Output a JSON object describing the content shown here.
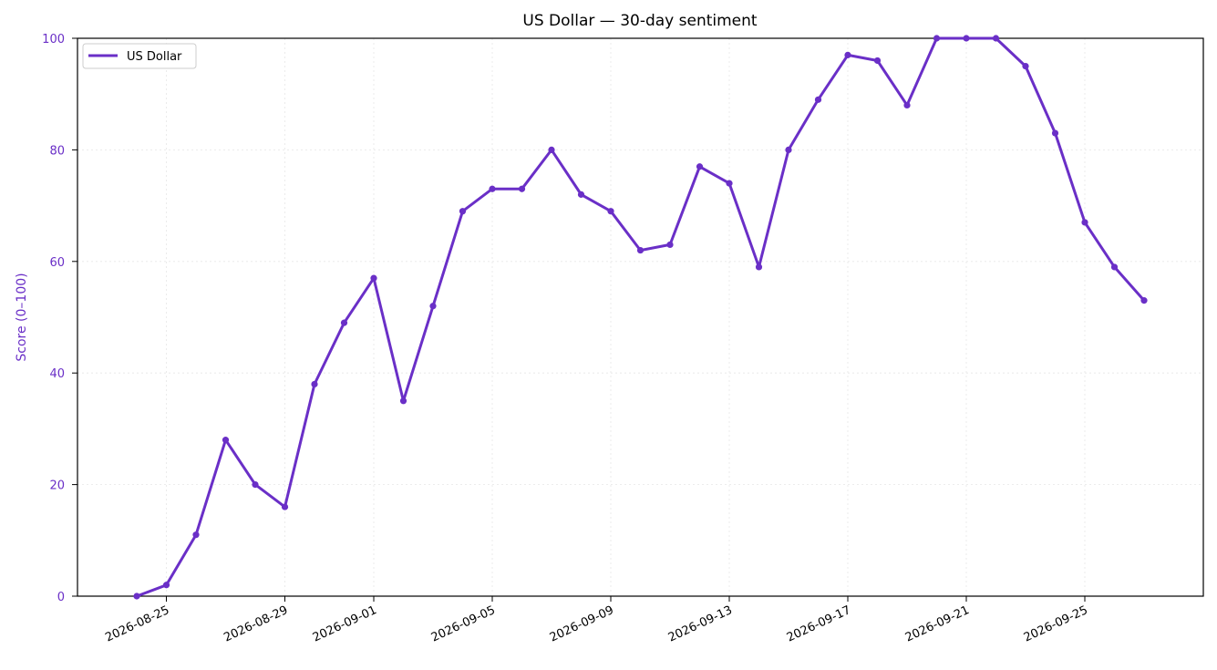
{
  "chart_data": {
    "type": "line",
    "title": "US Dollar — 30-day sentiment",
    "xlabel": "",
    "ylabel": "Score (0–100)",
    "ylim": [
      0,
      100
    ],
    "yticks": [
      0,
      20,
      40,
      60,
      80,
      100
    ],
    "xticks": [
      "2026-08-25",
      "2026-08-29",
      "2026-09-01",
      "2026-09-05",
      "2026-09-09",
      "2026-09-13",
      "2026-09-17",
      "2026-09-21",
      "2026-09-25"
    ],
    "xlim": [
      "2026-08-22",
      "2026-09-29"
    ],
    "grid": true,
    "legend": "top-left",
    "accent_color": "#6a2fc7",
    "series": [
      {
        "name": "US Dollar",
        "x": [
          "2026-08-24",
          "2026-08-25",
          "2026-08-26",
          "2026-08-27",
          "2026-08-28",
          "2026-08-29",
          "2026-08-30",
          "2026-08-31",
          "2026-09-01",
          "2026-09-02",
          "2026-09-03",
          "2026-09-04",
          "2026-09-05",
          "2026-09-06",
          "2026-09-07",
          "2026-09-08",
          "2026-09-09",
          "2026-09-10",
          "2026-09-11",
          "2026-09-12",
          "2026-09-13",
          "2026-09-14",
          "2026-09-15",
          "2026-09-16",
          "2026-09-17",
          "2026-09-18",
          "2026-09-19",
          "2026-09-20",
          "2026-09-21",
          "2026-09-22",
          "2026-09-23",
          "2026-09-24",
          "2026-09-25",
          "2026-09-26",
          "2026-09-27"
        ],
        "values": [
          0,
          2,
          11,
          28,
          20,
          16,
          38,
          49,
          57,
          35,
          52,
          69,
          73,
          73,
          80,
          72,
          69,
          62,
          63,
          77,
          74,
          59,
          80,
          89,
          97,
          96,
          88,
          100,
          100,
          100,
          95,
          83,
          67,
          59,
          53
        ]
      }
    ]
  }
}
